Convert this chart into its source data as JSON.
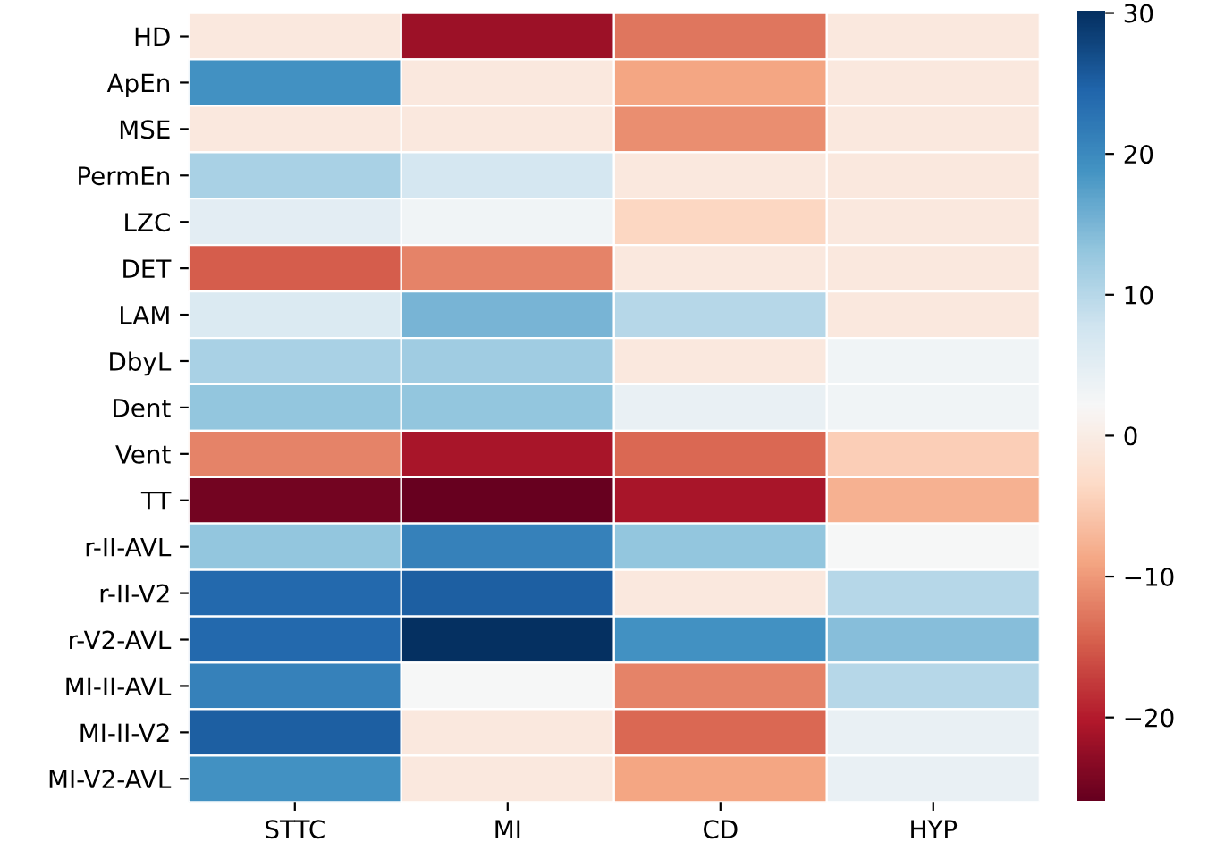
{
  "chart_data": {
    "type": "heatmap",
    "categories": [
      "STTC",
      "MI",
      "CD",
      "HYP"
    ],
    "y_categories": [
      "HD",
      "ApEn",
      "MSE",
      "PermEn",
      "LZC",
      "DET",
      "LAM",
      "DbyL",
      "Dent",
      "Vent",
      "TT",
      "r-II-AVL",
      "r-II-V2",
      "r-V2-AVL",
      "MI-II-AVL",
      "MI-II-V2",
      "MI-V2-AVL"
    ],
    "cells": [
      [
        -1,
        -22,
        -13,
        -1
      ],
      [
        19,
        -1,
        -9,
        -1
      ],
      [
        -1,
        -1,
        -11,
        -1
      ],
      [
        11,
        7,
        -1,
        -1
      ],
      [
        5,
        3,
        -4,
        -1
      ],
      [
        -15,
        -12,
        -1,
        -1
      ],
      [
        6,
        15,
        10,
        -1
      ],
      [
        11,
        12,
        -1,
        3
      ],
      [
        13,
        13,
        4,
        3
      ],
      [
        -12,
        -21,
        -14,
        -5
      ],
      [
        -25,
        -26,
        -21,
        -8
      ],
      [
        13,
        21,
        13,
        2
      ],
      [
        24,
        25,
        -1,
        10
      ],
      [
        24,
        30,
        19,
        14
      ],
      [
        21,
        2,
        -12,
        10
      ],
      [
        25,
        -1,
        -14,
        4
      ],
      [
        19,
        -1,
        -9,
        4
      ]
    ],
    "clim": [
      -26,
      30
    ],
    "cticks": [
      {
        "value": -20,
        "label": "−20"
      },
      {
        "value": -10,
        "label": "−10"
      },
      0,
      10,
      20,
      30
    ]
  }
}
